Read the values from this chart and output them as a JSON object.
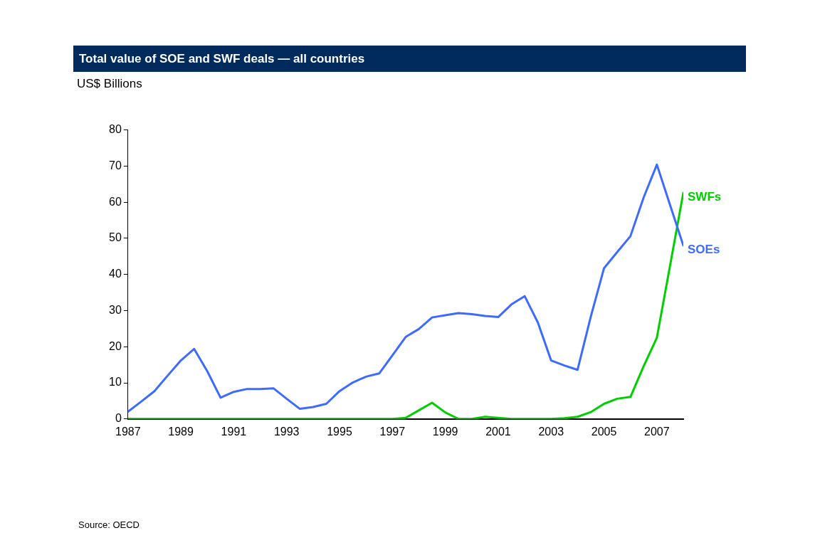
{
  "chart_data": {
    "type": "line",
    "title": "Total value of SOE and SWF deals — all countries",
    "ylabel": "US$ Billions",
    "x": [
      1987,
      1987.5,
      1988,
      1988.5,
      1989,
      1989.5,
      1990,
      1990.5,
      1991,
      1991.5,
      1992,
      1992.5,
      1993,
      1993.5,
      1994,
      1994.5,
      1995,
      1995.5,
      1996,
      1996.5,
      1997,
      1997.5,
      1998,
      1998.5,
      1999,
      1999.5,
      2000,
      2000.5,
      2001,
      2001.5,
      2002,
      2002.5,
      2003,
      2003.5,
      2004,
      2004.5,
      2005,
      2005.5,
      2006,
      2006.5,
      2007,
      2007.5,
      2008
    ],
    "series": [
      {
        "name": "SOEs",
        "color": "#3d6bff",
        "values": [
          2.0,
          4.8,
          7.7,
          12.0,
          16.2,
          19.4,
          13.2,
          5.9,
          7.5,
          8.3,
          8.3,
          8.5,
          5.6,
          2.8,
          3.3,
          4.2,
          7.7,
          10.1,
          11.7,
          12.6,
          17.6,
          22.7,
          24.9,
          28.1,
          28.7,
          29.3,
          29.0,
          28.5,
          28.2,
          31.7,
          34.0,
          26.7,
          16.2,
          14.8,
          13.6,
          28.3,
          41.7,
          46.2,
          50.6,
          61.3,
          70.4,
          59.2,
          48.0
        ]
      },
      {
        "name": "SWFs",
        "color": "#00d000",
        "values": [
          0,
          0,
          0,
          0,
          0,
          0,
          0,
          0,
          0,
          0,
          0,
          0,
          0,
          0,
          0,
          0,
          0,
          0,
          0,
          0,
          0,
          0.3,
          2.4,
          4.5,
          1.8,
          0,
          0,
          0.6,
          0.3,
          0,
          0,
          0,
          0,
          0.2,
          0.6,
          1.9,
          4.2,
          5.6,
          6.1,
          14.6,
          22.5,
          42.5,
          62.6
        ]
      }
    ],
    "xlim": [
      1987,
      2008
    ],
    "xticks": [
      1987,
      1989,
      1991,
      1993,
      1995,
      1997,
      1999,
      2001,
      2003,
      2005,
      2007
    ],
    "ylim": [
      0,
      80
    ],
    "yticks": [
      0,
      10,
      20,
      30,
      40,
      50,
      60,
      70,
      80
    ],
    "grid": false,
    "legend": false,
    "marker": "none",
    "line_style": "solid",
    "annotations": [
      "Source: OECD"
    ]
  }
}
